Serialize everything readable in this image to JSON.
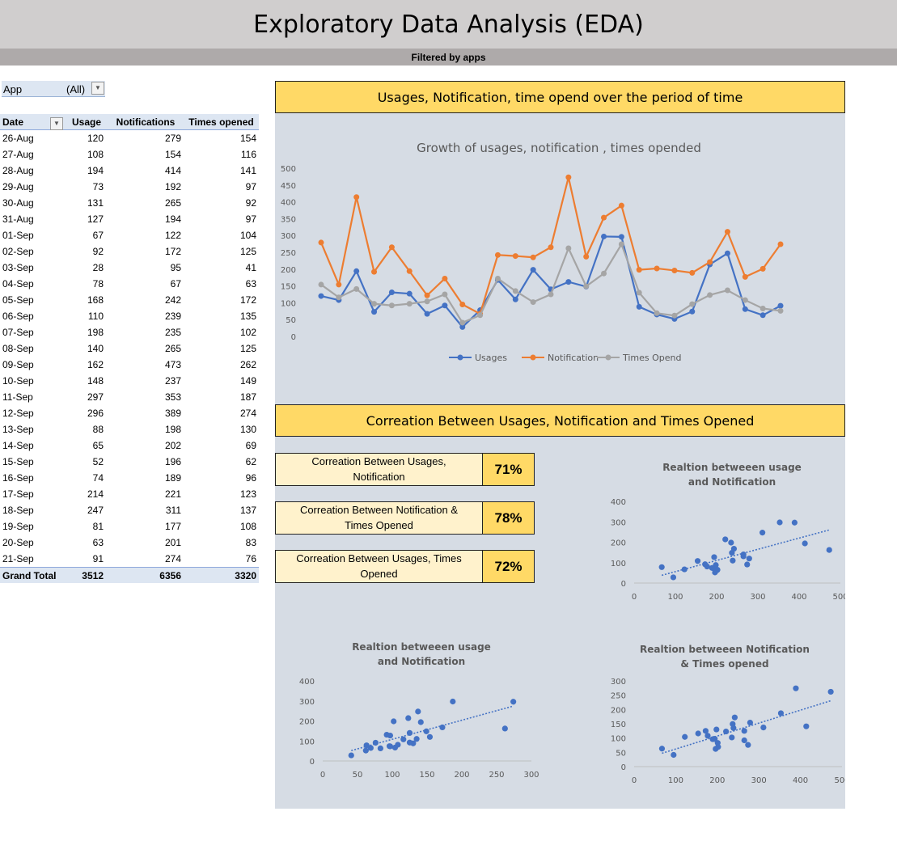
{
  "page": {
    "title": "Exploratory Data Analysis (EDA)",
    "subtitle": "Filtered by apps"
  },
  "filter": {
    "label": "App",
    "value": "(All)"
  },
  "pivot": {
    "headers": [
      "Date",
      "Usage",
      "Notifications",
      "Times opened"
    ],
    "rows": [
      [
        "26-Aug",
        120,
        279,
        154
      ],
      [
        "27-Aug",
        108,
        154,
        116
      ],
      [
        "28-Aug",
        194,
        414,
        141
      ],
      [
        "29-Aug",
        73,
        192,
        97
      ],
      [
        "30-Aug",
        131,
        265,
        92
      ],
      [
        "31-Aug",
        127,
        194,
        97
      ],
      [
        "01-Sep",
        67,
        122,
        104
      ],
      [
        "02-Sep",
        92,
        172,
        125
      ],
      [
        "03-Sep",
        28,
        95,
        41
      ],
      [
        "04-Sep",
        78,
        67,
        63
      ],
      [
        "05-Sep",
        168,
        242,
        172
      ],
      [
        "06-Sep",
        110,
        239,
        135
      ],
      [
        "07-Sep",
        198,
        235,
        102
      ],
      [
        "08-Sep",
        140,
        265,
        125
      ],
      [
        "09-Sep",
        162,
        473,
        262
      ],
      [
        "10-Sep",
        148,
        237,
        149
      ],
      [
        "11-Sep",
        297,
        353,
        187
      ],
      [
        "12-Sep",
        296,
        389,
        274
      ],
      [
        "13-Sep",
        88,
        198,
        130
      ],
      [
        "14-Sep",
        65,
        202,
        69
      ],
      [
        "15-Sep",
        52,
        196,
        62
      ],
      [
        "16-Sep",
        74,
        189,
        96
      ],
      [
        "17-Sep",
        214,
        221,
        123
      ],
      [
        "18-Sep",
        247,
        311,
        137
      ],
      [
        "19-Sep",
        81,
        177,
        108
      ],
      [
        "20-Sep",
        63,
        201,
        83
      ],
      [
        "21-Sep",
        91,
        274,
        76
      ]
    ],
    "total": [
      "Grand Total",
      3512,
      6356,
      3320
    ]
  },
  "sections": {
    "line_header": "Usages, Notification, time opend over the period of time",
    "corr_header": "Correation Between Usages, Notification and Times Opened"
  },
  "correlations": [
    {
      "label": "Correation Between Usages, Notification",
      "value": "71%"
    },
    {
      "label": "Correation Between  Notification & Times Opened",
      "value": "78%"
    },
    {
      "label": "Correation Between Usages, Times Opened",
      "value": "72%"
    }
  ],
  "chart_data": [
    {
      "type": "line",
      "title": "Growth of usages, notification , times opended",
      "ylim": [
        0,
        500
      ],
      "yticks": [
        0,
        50,
        100,
        150,
        200,
        250,
        300,
        350,
        400,
        450,
        500
      ],
      "grid": false,
      "legend": "bottom",
      "series": [
        {
          "name": "Usages",
          "color": "#4472c4",
          "values": [
            120,
            108,
            194,
            73,
            131,
            127,
            67,
            92,
            28,
            78,
            168,
            110,
            198,
            140,
            162,
            148,
            297,
            296,
            88,
            65,
            52,
            74,
            214,
            247,
            81,
            63,
            91
          ]
        },
        {
          "name": "Notification",
          "color": "#ed7d31",
          "values": [
            279,
            154,
            414,
            192,
            265,
            194,
            122,
            172,
            95,
            67,
            242,
            239,
            235,
            265,
            473,
            237,
            353,
            389,
            198,
            202,
            196,
            189,
            221,
            311,
            177,
            201,
            274
          ]
        },
        {
          "name": "Times Opend",
          "color": "#a5a5a5",
          "values": [
            154,
            116,
            141,
            97,
            92,
            97,
            104,
            125,
            41,
            63,
            172,
            135,
            102,
            125,
            262,
            149,
            187,
            274,
            130,
            69,
            62,
            96,
            123,
            137,
            108,
            83,
            76
          ]
        }
      ]
    },
    {
      "type": "scatter",
      "title": "Realtion betweeen usage and Notification",
      "xlim": [
        0,
        500
      ],
      "xticks": [
        0,
        100,
        200,
        300,
        400,
        500
      ],
      "ylim": [
        0,
        400
      ],
      "yticks": [
        0,
        100,
        200,
        300,
        400
      ],
      "trendline": true,
      "color": "#4472c4",
      "x": [
        279,
        154,
        414,
        192,
        265,
        194,
        122,
        172,
        95,
        67,
        242,
        239,
        235,
        265,
        473,
        237,
        353,
        389,
        198,
        202,
        196,
        189,
        221,
        311,
        177,
        201,
        274
      ],
      "y": [
        120,
        108,
        194,
        73,
        131,
        127,
        67,
        92,
        28,
        78,
        168,
        110,
        198,
        140,
        162,
        148,
        297,
        296,
        88,
        65,
        52,
        74,
        214,
        247,
        81,
        63,
        91
      ]
    },
    {
      "type": "scatter",
      "title": "Realtion betweeen usage and Notification",
      "xlim": [
        0,
        300
      ],
      "xticks": [
        0,
        50,
        100,
        150,
        200,
        250,
        300
      ],
      "ylim": [
        0,
        400
      ],
      "yticks": [
        0,
        100,
        200,
        300,
        400
      ],
      "trendline": true,
      "color": "#4472c4",
      "x": [
        154,
        116,
        141,
        97,
        92,
        97,
        104,
        125,
        41,
        63,
        172,
        135,
        102,
        125,
        262,
        149,
        187,
        274,
        130,
        69,
        62,
        96,
        123,
        137,
        108,
        83,
        76
      ],
      "y": [
        120,
        108,
        194,
        73,
        131,
        127,
        67,
        92,
        28,
        78,
        168,
        110,
        198,
        140,
        162,
        148,
        297,
        296,
        88,
        65,
        52,
        74,
        214,
        247,
        81,
        63,
        91
      ]
    },
    {
      "type": "scatter",
      "title": "Realtion betweeen Notification & Times opened",
      "xlim": [
        0,
        500
      ],
      "xticks": [
        0,
        100,
        200,
        300,
        400,
        500
      ],
      "ylim": [
        0,
        300
      ],
      "yticks": [
        0,
        50,
        100,
        150,
        200,
        250,
        300
      ],
      "trendline": true,
      "color": "#4472c4",
      "x": [
        279,
        154,
        414,
        192,
        265,
        194,
        122,
        172,
        95,
        67,
        242,
        239,
        235,
        265,
        473,
        237,
        353,
        389,
        198,
        202,
        196,
        189,
        221,
        311,
        177,
        201,
        274
      ],
      "y": [
        154,
        116,
        141,
        97,
        92,
        97,
        104,
        125,
        41,
        63,
        172,
        135,
        102,
        125,
        262,
        149,
        187,
        274,
        130,
        69,
        62,
        96,
        123,
        137,
        108,
        83,
        76
      ]
    }
  ]
}
